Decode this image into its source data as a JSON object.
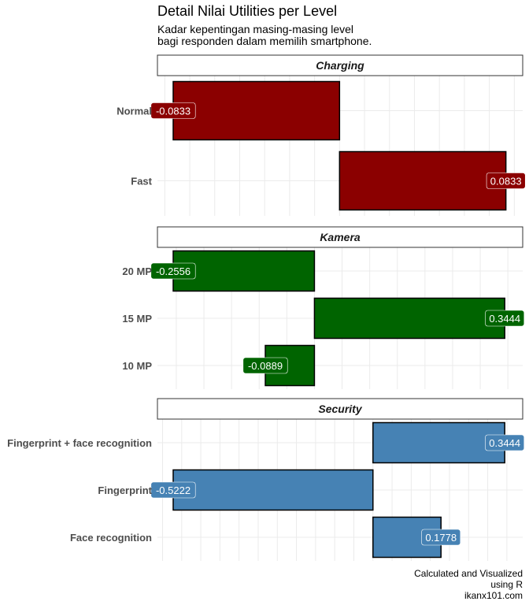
{
  "title": "Detail Nilai Utilities per Level",
  "subtitle": "Kadar kepentingan masing-masing level\nbagi responden dalam memilih smartphone.",
  "caption": "Calculated and Visualized\nusing R\nikanx101.com",
  "colors": {
    "Charging": "#8b0000",
    "Kamera": "#006400",
    "Security": "#4682b4",
    "label_text": "#ffffff",
    "grid": "#ebebeb",
    "axis_text": "#4d4d4d"
  },
  "chart_data": [
    {
      "type": "bar",
      "orientation": "horizontal",
      "facet": "Charging",
      "categories": [
        "Normal",
        "Fast"
      ],
      "values": [
        -0.0833,
        0.0833
      ],
      "labels": [
        "-0.0833",
        "0.0833"
      ],
      "grid": true
    },
    {
      "type": "bar",
      "orientation": "horizontal",
      "facet": "Kamera",
      "categories": [
        "20 MP",
        "15 MP",
        "10 MP"
      ],
      "values": [
        -0.2556,
        0.3444,
        -0.0889
      ],
      "labels": [
        "-0.2556",
        "0.3444",
        "-0.0889"
      ],
      "grid": true
    },
    {
      "type": "bar",
      "orientation": "horizontal",
      "facet": "Security",
      "categories": [
        "Fingerprint + face recognition",
        "Fingerprint",
        "Face recognition"
      ],
      "values": [
        0.3444,
        -0.5222,
        0.1778
      ],
      "labels": [
        "0.3444",
        "-0.5222",
        "0.1778"
      ],
      "grid": true
    }
  ]
}
